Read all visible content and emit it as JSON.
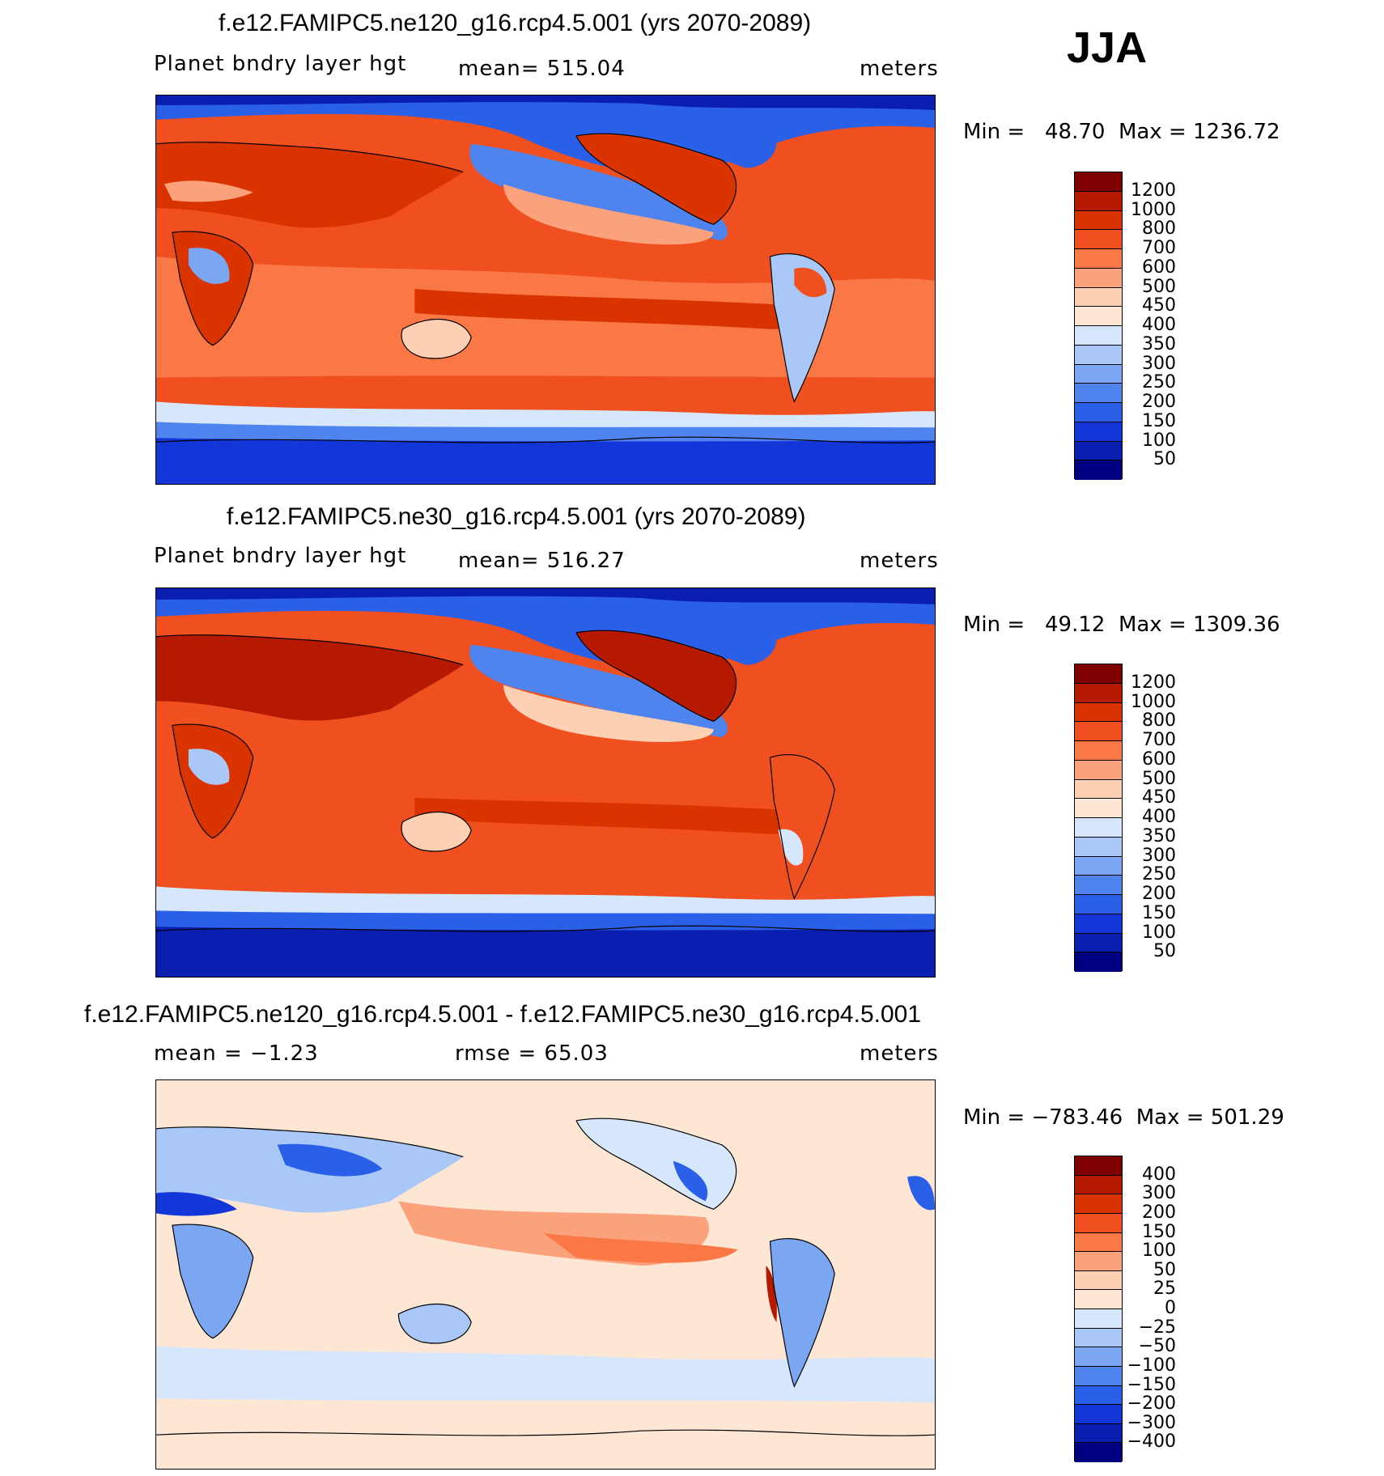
{
  "season": "JJA",
  "panels": [
    {
      "title": "f.e12.FAMIPC5.ne120_g16.rcp4.5.001 (yrs 2070-2089)",
      "variable": "Planet bndry layer hgt",
      "stat": "mean=  515.04",
      "units": "meters",
      "minmax": "Min =   48.70  Max = 1236.72",
      "colorbar": {
        "labels": [
          "1200",
          "1000",
          "800",
          "700",
          "600",
          "500",
          "450",
          "400",
          "350",
          "300",
          "250",
          "200",
          "150",
          "100",
          "50"
        ],
        "colors": [
          "#7f0000",
          "#b51a00",
          "#d93300",
          "#f05020",
          "#fa7845",
          "#fba27c",
          "#fdd0b4",
          "#fee6d4",
          "#d6e6fb",
          "#a9c8f7",
          "#7aa6f2",
          "#4f84ee",
          "#2a5fe8",
          "#1236d8",
          "#0a1fb0",
          "#000080"
        ]
      }
    },
    {
      "title": "f.e12.FAMIPC5.ne30_g16.rcp4.5.001 (yrs 2070-2089)",
      "variable": "Planet bndry layer hgt",
      "stat": "mean=  516.27",
      "units": "meters",
      "minmax": "Min =   49.12  Max = 1309.36",
      "colorbar": {
        "labels": [
          "1200",
          "1000",
          "800",
          "700",
          "600",
          "500",
          "450",
          "400",
          "350",
          "300",
          "250",
          "200",
          "150",
          "100",
          "50"
        ],
        "colors": [
          "#7f0000",
          "#b51a00",
          "#d93300",
          "#f05020",
          "#fa7845",
          "#fba27c",
          "#fdd0b4",
          "#fee6d4",
          "#d6e6fb",
          "#a9c8f7",
          "#7aa6f2",
          "#4f84ee",
          "#2a5fe8",
          "#1236d8",
          "#0a1fb0",
          "#000080"
        ]
      }
    },
    {
      "title": "f.e12.FAMIPC5.ne120_g16.rcp4.5.001 - f.e12.FAMIPC5.ne30_g16.rcp4.5.001",
      "variable": "mean =   −1.23",
      "stat": "rmse =   65.03",
      "units": "meters",
      "minmax": "Min = −783.46  Max = 501.29",
      "colorbar": {
        "labels": [
          "400",
          "300",
          "200",
          "150",
          "100",
          "50",
          "25",
          "0",
          "−25",
          "−50",
          "−100",
          "−150",
          "−200",
          "−300",
          "−400"
        ],
        "colors": [
          "#7f0000",
          "#b51a00",
          "#d93300",
          "#f05020",
          "#fa7845",
          "#fba27c",
          "#fdd0b4",
          "#fee6d4",
          "#d6e6fb",
          "#a9c8f7",
          "#7aa6f2",
          "#4f84ee",
          "#2a5fe8",
          "#1236d8",
          "#0a1fb0",
          "#000080"
        ]
      }
    }
  ]
}
